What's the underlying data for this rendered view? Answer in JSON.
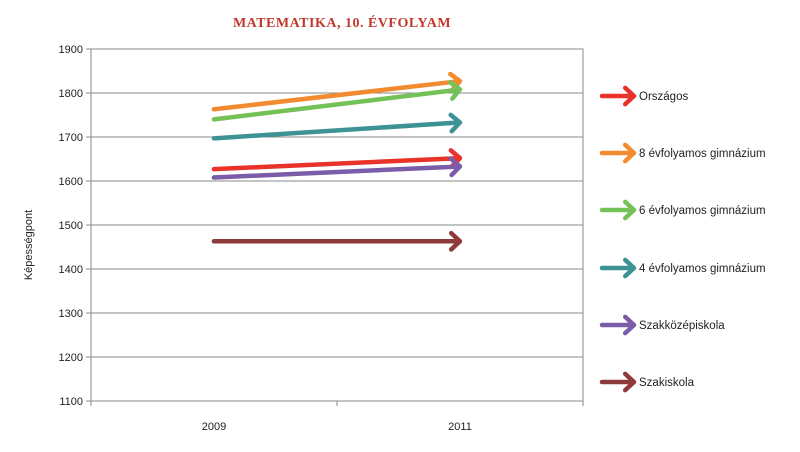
{
  "chart_data": {
    "type": "line",
    "title": "MATEMATIKA, 10. ÉVFOLYAM",
    "xlabel": "",
    "ylabel": "Képességpont",
    "categories": [
      "2009",
      "2011"
    ],
    "ylim": [
      1100,
      1900
    ],
    "yticks": [
      "1100",
      "1200",
      "1300",
      "1400",
      "1500",
      "1600",
      "1700",
      "1800",
      "1900"
    ],
    "grid": true,
    "legend_position": "right",
    "series": [
      {
        "name": "Országos",
        "color": "#e8322a",
        "values": [
          1627,
          1652
        ]
      },
      {
        "name": "8 évfolyamos gimnázium",
        "color": "#f28a30",
        "values": [
          1763,
          1827
        ]
      },
      {
        "name": "6 évfolyamos gimnázium",
        "color": "#74c157",
        "values": [
          1740,
          1808
        ]
      },
      {
        "name": "4 évfolyamos gimnázium",
        "color": "#3d9296",
        "values": [
          1697,
          1733
        ]
      },
      {
        "name": "Szakközépiskola",
        "color": "#7b5ca8",
        "values": [
          1608,
          1633
        ]
      },
      {
        "name": "Szakiskola",
        "color": "#8e3a3a",
        "values": [
          1463,
          1463
        ]
      }
    ]
  }
}
